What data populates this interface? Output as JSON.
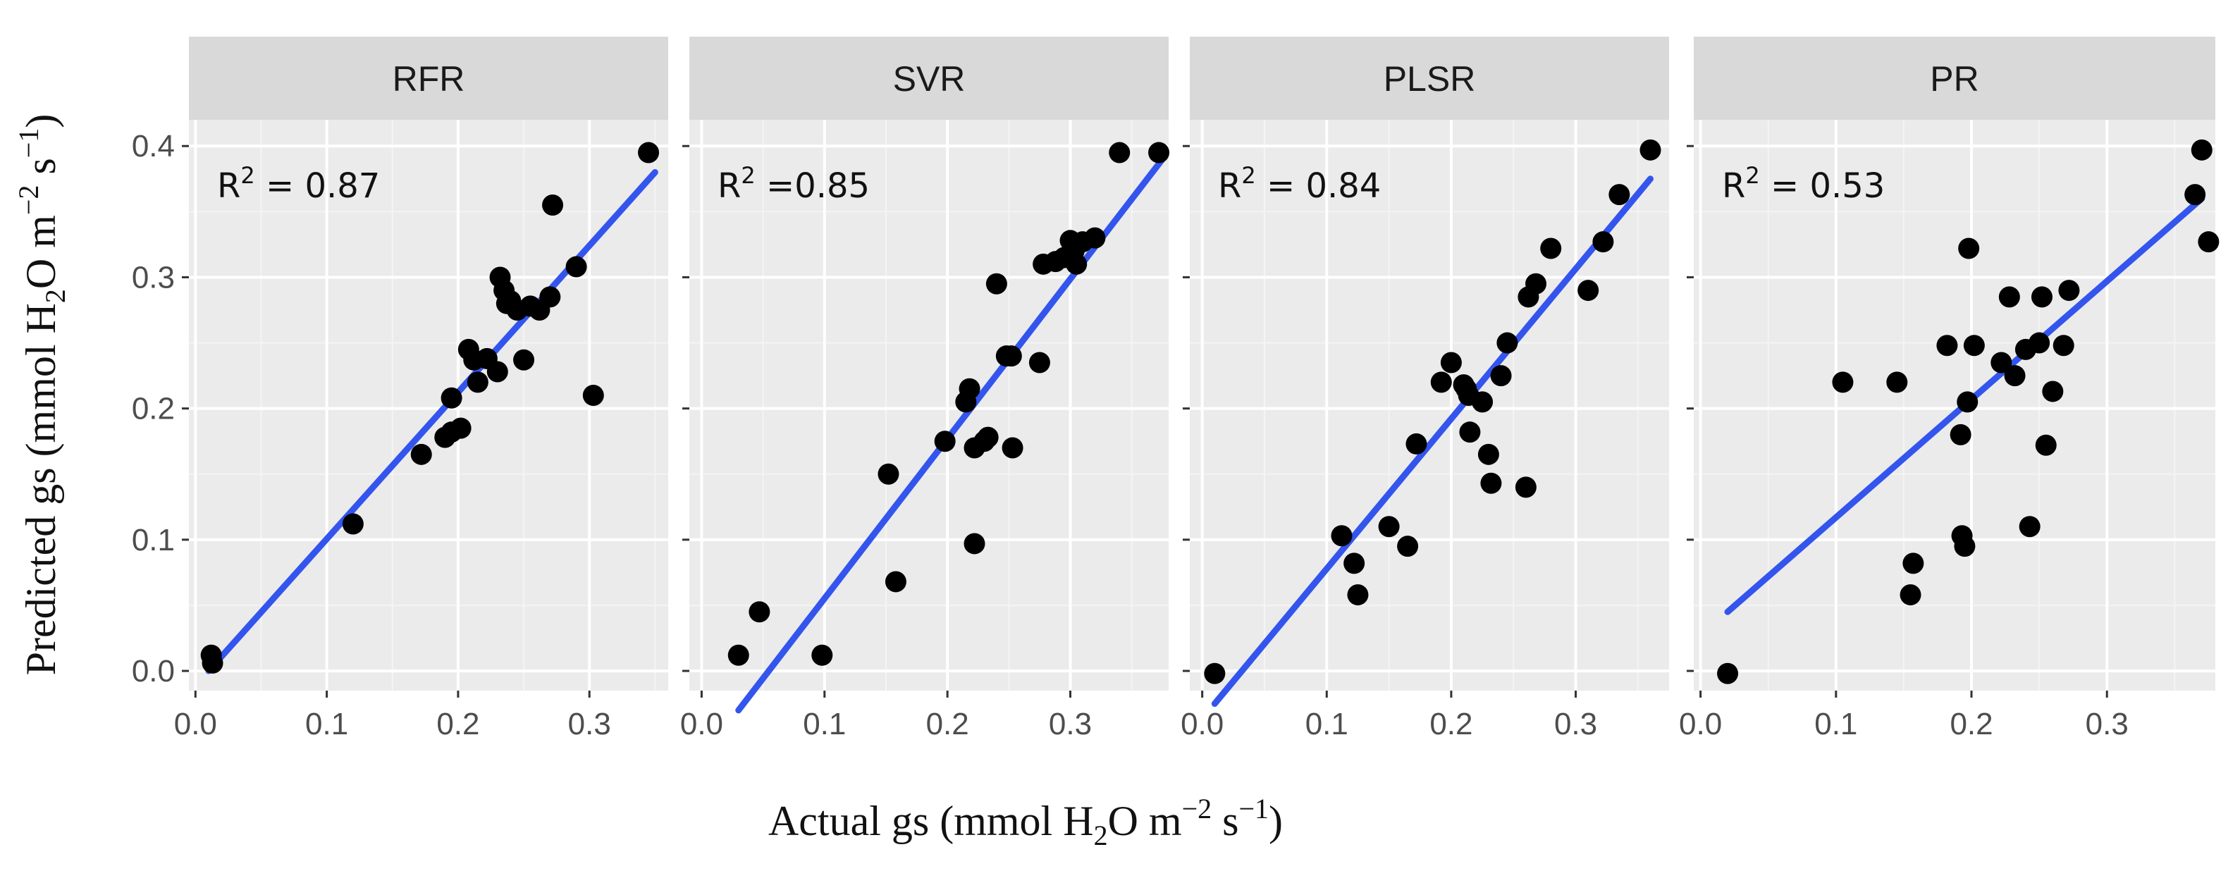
{
  "figure": {
    "y_axis_label": {
      "prefix": "Predicted gs (mmol H",
      "sub": "2",
      "mid1": "O m",
      "sup1": "−2",
      "mid2": " s",
      "sup2": "−1",
      "suffix": ")"
    },
    "x_axis_label": {
      "prefix": "Actual gs (mmol H",
      "sub": "2",
      "mid1": "O m",
      "sup1": "−2",
      "mid2": " s",
      "sup2": "−1",
      "suffix": ")"
    },
    "y_ticks": [
      "0.0",
      "0.1",
      "0.2",
      "0.3",
      "0.4"
    ],
    "colors": {
      "panel_bg": "#ebebeb",
      "strip_bg": "#d9d9d9",
      "grid_major": "#ffffff",
      "grid_minor": "#f4f4f4",
      "point": "#000000",
      "fit_line": "#3355ee",
      "tick_text": "#4d4d4d",
      "label_text": "#111111"
    }
  },
  "chart_data": [
    {
      "type": "scatter",
      "panel_title": "RFR",
      "r2_label": "0.87",
      "r2_sep": " = ",
      "xlim": [
        -0.005,
        0.36
      ],
      "ylim": [
        -0.015,
        0.42
      ],
      "x_ticks": [
        "0.0",
        "0.1",
        "0.2",
        "0.3"
      ],
      "fit_line": {
        "x": [
          0.01,
          0.35
        ],
        "y": [
          0.0,
          0.38
        ]
      },
      "points": [
        {
          "x": 0.012,
          "y": 0.012
        },
        {
          "x": 0.013,
          "y": 0.006
        },
        {
          "x": 0.12,
          "y": 0.112
        },
        {
          "x": 0.172,
          "y": 0.165
        },
        {
          "x": 0.19,
          "y": 0.178
        },
        {
          "x": 0.195,
          "y": 0.182
        },
        {
          "x": 0.202,
          "y": 0.185
        },
        {
          "x": 0.195,
          "y": 0.208
        },
        {
          "x": 0.208,
          "y": 0.245
        },
        {
          "x": 0.212,
          "y": 0.237
        },
        {
          "x": 0.215,
          "y": 0.22
        },
        {
          "x": 0.222,
          "y": 0.238
        },
        {
          "x": 0.23,
          "y": 0.228
        },
        {
          "x": 0.232,
          "y": 0.3
        },
        {
          "x": 0.235,
          "y": 0.29
        },
        {
          "x": 0.237,
          "y": 0.28
        },
        {
          "x": 0.24,
          "y": 0.282
        },
        {
          "x": 0.245,
          "y": 0.275
        },
        {
          "x": 0.25,
          "y": 0.237
        },
        {
          "x": 0.255,
          "y": 0.278
        },
        {
          "x": 0.262,
          "y": 0.275
        },
        {
          "x": 0.27,
          "y": 0.285
        },
        {
          "x": 0.272,
          "y": 0.355
        },
        {
          "x": 0.29,
          "y": 0.308
        },
        {
          "x": 0.303,
          "y": 0.21
        },
        {
          "x": 0.345,
          "y": 0.395
        }
      ]
    },
    {
      "type": "scatter",
      "panel_title": "SVR",
      "r2_label": "0.85",
      "r2_sep": " =",
      "xlim": [
        -0.01,
        0.38
      ],
      "ylim": [
        -0.015,
        0.42
      ],
      "x_ticks": [
        "0.0",
        "0.1",
        "0.2",
        "0.3"
      ],
      "fit_line": {
        "x": [
          0.03,
          0.375
        ],
        "y": [
          -0.03,
          0.39
        ]
      },
      "points": [
        {
          "x": 0.03,
          "y": 0.012
        },
        {
          "x": 0.047,
          "y": 0.045
        },
        {
          "x": 0.098,
          "y": 0.012
        },
        {
          "x": 0.152,
          "y": 0.15
        },
        {
          "x": 0.158,
          "y": 0.068
        },
        {
          "x": 0.198,
          "y": 0.175
        },
        {
          "x": 0.215,
          "y": 0.205
        },
        {
          "x": 0.218,
          "y": 0.215
        },
        {
          "x": 0.222,
          "y": 0.17
        },
        {
          "x": 0.222,
          "y": 0.097
        },
        {
          "x": 0.23,
          "y": 0.175
        },
        {
          "x": 0.233,
          "y": 0.178
        },
        {
          "x": 0.24,
          "y": 0.295
        },
        {
          "x": 0.248,
          "y": 0.24
        },
        {
          "x": 0.252,
          "y": 0.24
        },
        {
          "x": 0.253,
          "y": 0.17
        },
        {
          "x": 0.275,
          "y": 0.235
        },
        {
          "x": 0.278,
          "y": 0.31
        },
        {
          "x": 0.288,
          "y": 0.312
        },
        {
          "x": 0.295,
          "y": 0.315
        },
        {
          "x": 0.3,
          "y": 0.328
        },
        {
          "x": 0.303,
          "y": 0.32
        },
        {
          "x": 0.305,
          "y": 0.31
        },
        {
          "x": 0.31,
          "y": 0.327
        },
        {
          "x": 0.32,
          "y": 0.33
        },
        {
          "x": 0.34,
          "y": 0.395
        },
        {
          "x": 0.372,
          "y": 0.395
        }
      ]
    },
    {
      "type": "scatter",
      "panel_title": "PLSR",
      "r2_label": "0.84",
      "r2_sep": " = ",
      "xlim": [
        -0.01,
        0.375
      ],
      "ylim": [
        -0.015,
        0.42
      ],
      "x_ticks": [
        "0.0",
        "0.1",
        "0.2",
        "0.3"
      ],
      "fit_line": {
        "x": [
          0.01,
          0.36
        ],
        "y": [
          -0.025,
          0.375
        ]
      },
      "points": [
        {
          "x": 0.01,
          "y": -0.002
        },
        {
          "x": 0.112,
          "y": 0.103
        },
        {
          "x": 0.122,
          "y": 0.082
        },
        {
          "x": 0.125,
          "y": 0.058
        },
        {
          "x": 0.15,
          "y": 0.11
        },
        {
          "x": 0.165,
          "y": 0.095
        },
        {
          "x": 0.172,
          "y": 0.173
        },
        {
          "x": 0.192,
          "y": 0.22
        },
        {
          "x": 0.2,
          "y": 0.235
        },
        {
          "x": 0.21,
          "y": 0.218
        },
        {
          "x": 0.212,
          "y": 0.215
        },
        {
          "x": 0.214,
          "y": 0.21
        },
        {
          "x": 0.215,
          "y": 0.182
        },
        {
          "x": 0.225,
          "y": 0.205
        },
        {
          "x": 0.23,
          "y": 0.165
        },
        {
          "x": 0.232,
          "y": 0.143
        },
        {
          "x": 0.24,
          "y": 0.225
        },
        {
          "x": 0.245,
          "y": 0.25
        },
        {
          "x": 0.26,
          "y": 0.14
        },
        {
          "x": 0.262,
          "y": 0.285
        },
        {
          "x": 0.268,
          "y": 0.295
        },
        {
          "x": 0.28,
          "y": 0.322
        },
        {
          "x": 0.31,
          "y": 0.29
        },
        {
          "x": 0.322,
          "y": 0.327
        },
        {
          "x": 0.335,
          "y": 0.363
        },
        {
          "x": 0.36,
          "y": 0.397
        }
      ]
    },
    {
      "type": "scatter",
      "panel_title": "PR",
      "r2_label": "0.53",
      "r2_sep": " = ",
      "xlim": [
        -0.005,
        0.38
      ],
      "ylim": [
        -0.015,
        0.42
      ],
      "x_ticks": [
        "0.0",
        "0.1",
        "0.2",
        "0.3"
      ],
      "fit_line": {
        "x": [
          0.02,
          0.37
        ],
        "y": [
          0.045,
          0.36
        ]
      },
      "points": [
        {
          "x": 0.02,
          "y": -0.002
        },
        {
          "x": 0.105,
          "y": 0.22
        },
        {
          "x": 0.145,
          "y": 0.22
        },
        {
          "x": 0.155,
          "y": 0.058
        },
        {
          "x": 0.157,
          "y": 0.082
        },
        {
          "x": 0.182,
          "y": 0.248
        },
        {
          "x": 0.192,
          "y": 0.18
        },
        {
          "x": 0.193,
          "y": 0.103
        },
        {
          "x": 0.195,
          "y": 0.095
        },
        {
          "x": 0.197,
          "y": 0.205
        },
        {
          "x": 0.198,
          "y": 0.322
        },
        {
          "x": 0.202,
          "y": 0.248
        },
        {
          "x": 0.222,
          "y": 0.235
        },
        {
          "x": 0.228,
          "y": 0.285
        },
        {
          "x": 0.232,
          "y": 0.225
        },
        {
          "x": 0.24,
          "y": 0.245
        },
        {
          "x": 0.243,
          "y": 0.11
        },
        {
          "x": 0.25,
          "y": 0.25
        },
        {
          "x": 0.252,
          "y": 0.285
        },
        {
          "x": 0.255,
          "y": 0.172
        },
        {
          "x": 0.26,
          "y": 0.213
        },
        {
          "x": 0.268,
          "y": 0.248
        },
        {
          "x": 0.272,
          "y": 0.29
        },
        {
          "x": 0.365,
          "y": 0.363
        },
        {
          "x": 0.37,
          "y": 0.397
        },
        {
          "x": 0.375,
          "y": 0.327
        }
      ]
    }
  ]
}
